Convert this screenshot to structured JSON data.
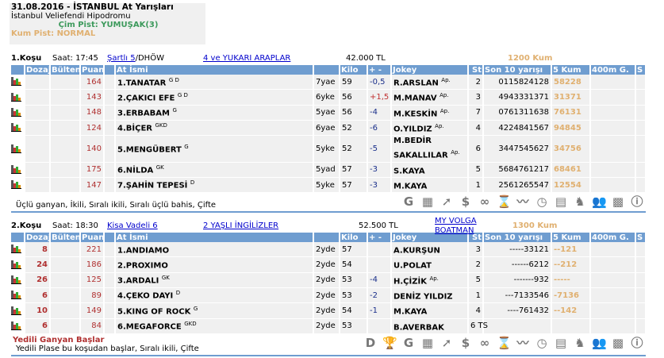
{
  "header": {
    "title": "31.08.2016 - İSTANBUL At Yarışları",
    "venue": "İstanbul Veliefendi Hipodromu",
    "cim": "Çim Pist: YUMUŞAK(3)",
    "kum": "Kum Pist: NORMAL"
  },
  "columns": [
    "Dozaj",
    "Bülten",
    "Puan",
    "",
    "At İsmi",
    "",
    "Kilo",
    "+ -",
    "Jokey",
    "St",
    "Son 10 yarışı",
    "5 Kum",
    "400m G.",
    "S"
  ],
  "icons": [
    "G-icon",
    "calculator-card-icon",
    "trend-arrow-icon",
    "dollar-icon",
    "binoculars-icon",
    "hourglass-icon",
    "line-chart-icon",
    "stopwatch-icon",
    "calculator-icon",
    "horse-head-icon",
    "people-icon",
    "checkered-flag-icon",
    "info-icon"
  ],
  "races": [
    {
      "no": "1.Koşu",
      "time": "Saat: 17:45",
      "cond": "Şartlı  5",
      "cond2": "/DHÖW",
      "group": "4 ve YUKARI ARAPLAR",
      "prize": "42.000 TL",
      "dist": "1200 Kum",
      "special": "",
      "bets": "Üçlü ganyan, İkili, Sıralı ikili, Sıralı üçlü bahis, Çifte",
      "rows": [
        {
          "doz": "",
          "bul": "",
          "puan": "164",
          "name": "1.TANATAR",
          "sup": "G D",
          "age": "7yae",
          "kilo": "59",
          "pm": "-0,5",
          "jokey": "R.ARSLAN",
          "ap": "Ap.",
          "st": "2",
          "son": "0115824128",
          "kum": "58228"
        },
        {
          "doz": "",
          "bul": "",
          "puan": "143",
          "name": "2.ÇAKICI EFE",
          "sup": "G D",
          "age": "6yke",
          "kilo": "56",
          "pm": "+1,5",
          "jokey": "M.MANAV",
          "ap": "Ap.",
          "st": "3",
          "son": "4943331371",
          "kum": "31371"
        },
        {
          "doz": "",
          "bul": "",
          "puan": "148",
          "name": "3.ERBABAM",
          "sup": "G",
          "age": "5yae",
          "kilo": "56",
          "pm": "-4",
          "jokey": "M.KESKİN",
          "ap": "Ap.",
          "st": "7",
          "son": "0761311638",
          "kum": "76131"
        },
        {
          "doz": "",
          "bul": "",
          "puan": "124",
          "name": "4.BİÇER",
          "sup": "GKD",
          "age": "6yae",
          "kilo": "52",
          "pm": "-6",
          "jokey": "O.YILDIZ",
          "ap": "Ap.",
          "st": "4",
          "son": "4224841567",
          "kum": "94845"
        },
        {
          "doz": "",
          "bul": "",
          "puan": "140",
          "name": "5.MENGÜBERT",
          "sup": "G",
          "age": "5yke",
          "kilo": "52",
          "pm": "-5",
          "jokey": "M.BEDİR SAKALLILAR",
          "ap": "Ap.",
          "st": "6",
          "son": "3447545627",
          "kum": "34756"
        },
        {
          "doz": "",
          "bul": "",
          "puan": "175",
          "name": "6.NİLDA",
          "sup": "GK",
          "age": "5yad",
          "kilo": "57",
          "pm": "-3",
          "jokey": "S.KAYA",
          "ap": "",
          "st": "5",
          "son": "5684761217",
          "kum": "68461"
        },
        {
          "doz": "",
          "bul": "",
          "puan": "147",
          "name": "7.ŞAHİN TEPESİ",
          "sup": "D",
          "age": "5yke",
          "kilo": "57",
          "pm": "-3",
          "jokey": "M.KAYA",
          "ap": "",
          "st": "1",
          "son": "2561265547",
          "kum": "12554"
        }
      ]
    },
    {
      "no": "2.Koşu",
      "time": "Saat: 18:30",
      "cond": "Kisa Vadeli  6",
      "cond2": "",
      "group": "2 YAŞLI İNGİLİZLER",
      "prize": "52.500 TL",
      "trophy": "MY VOLGA BOATMAN",
      "dist": "1300 Kum",
      "special": "Yedili Ganyan Başlar",
      "bets": "Yedili Plase bu koşudan başlar, Sıralı ikili, Çifte",
      "rows": [
        {
          "doz": "8",
          "bul": "",
          "puan": "221",
          "name": "1.ANDIAMO",
          "sup": "",
          "age": "2yde",
          "kilo": "57",
          "pm": "",
          "jokey": "A.KURŞUN",
          "ap": "",
          "st": "3",
          "son": "-----33121",
          "kum": "--121"
        },
        {
          "doz": "24",
          "bul": "",
          "puan": "186",
          "name": "2.PROXIMO",
          "sup": "",
          "age": "2yde",
          "kilo": "54",
          "pm": "",
          "jokey": "U.POLAT",
          "ap": "",
          "st": "2",
          "son": "------6212",
          "kum": "--212"
        },
        {
          "doz": "26",
          "bul": "",
          "puan": "125",
          "name": "3.ARDALI",
          "sup": "GK",
          "age": "2yde",
          "kilo": "53",
          "pm": "-4",
          "jokey": "H.ÇİZİK",
          "ap": "Ap.",
          "st": "5",
          "son": "-------932",
          "kum": "-----"
        },
        {
          "doz": "6",
          "bul": "",
          "puan": "89",
          "name": "4.ÇEKO DAYI",
          "sup": "D",
          "age": "2yde",
          "kilo": "53",
          "pm": "-2",
          "jokey": "DENİZ YILDIZ",
          "ap": "",
          "st": "1",
          "son": "---7133546",
          "kum": "-7136"
        },
        {
          "doz": "10",
          "bul": "",
          "puan": "149",
          "name": "5.KING OF ROCK",
          "sup": "G",
          "age": "2yde",
          "kilo": "54",
          "pm": "-1",
          "jokey": "M.KAYA",
          "ap": "",
          "st": "4",
          "son": "----761432",
          "kum": "--142"
        },
        {
          "doz": "6",
          "bul": "",
          "puan": "84",
          "name": "6.MEGAFORCE",
          "sup": "GKD",
          "age": "2yde",
          "kilo": "53",
          "pm": "",
          "jokey": "B.AVERBAK",
          "ap": "",
          "st": "6 TS",
          "son": "",
          "kum": ""
        }
      ]
    }
  ]
}
